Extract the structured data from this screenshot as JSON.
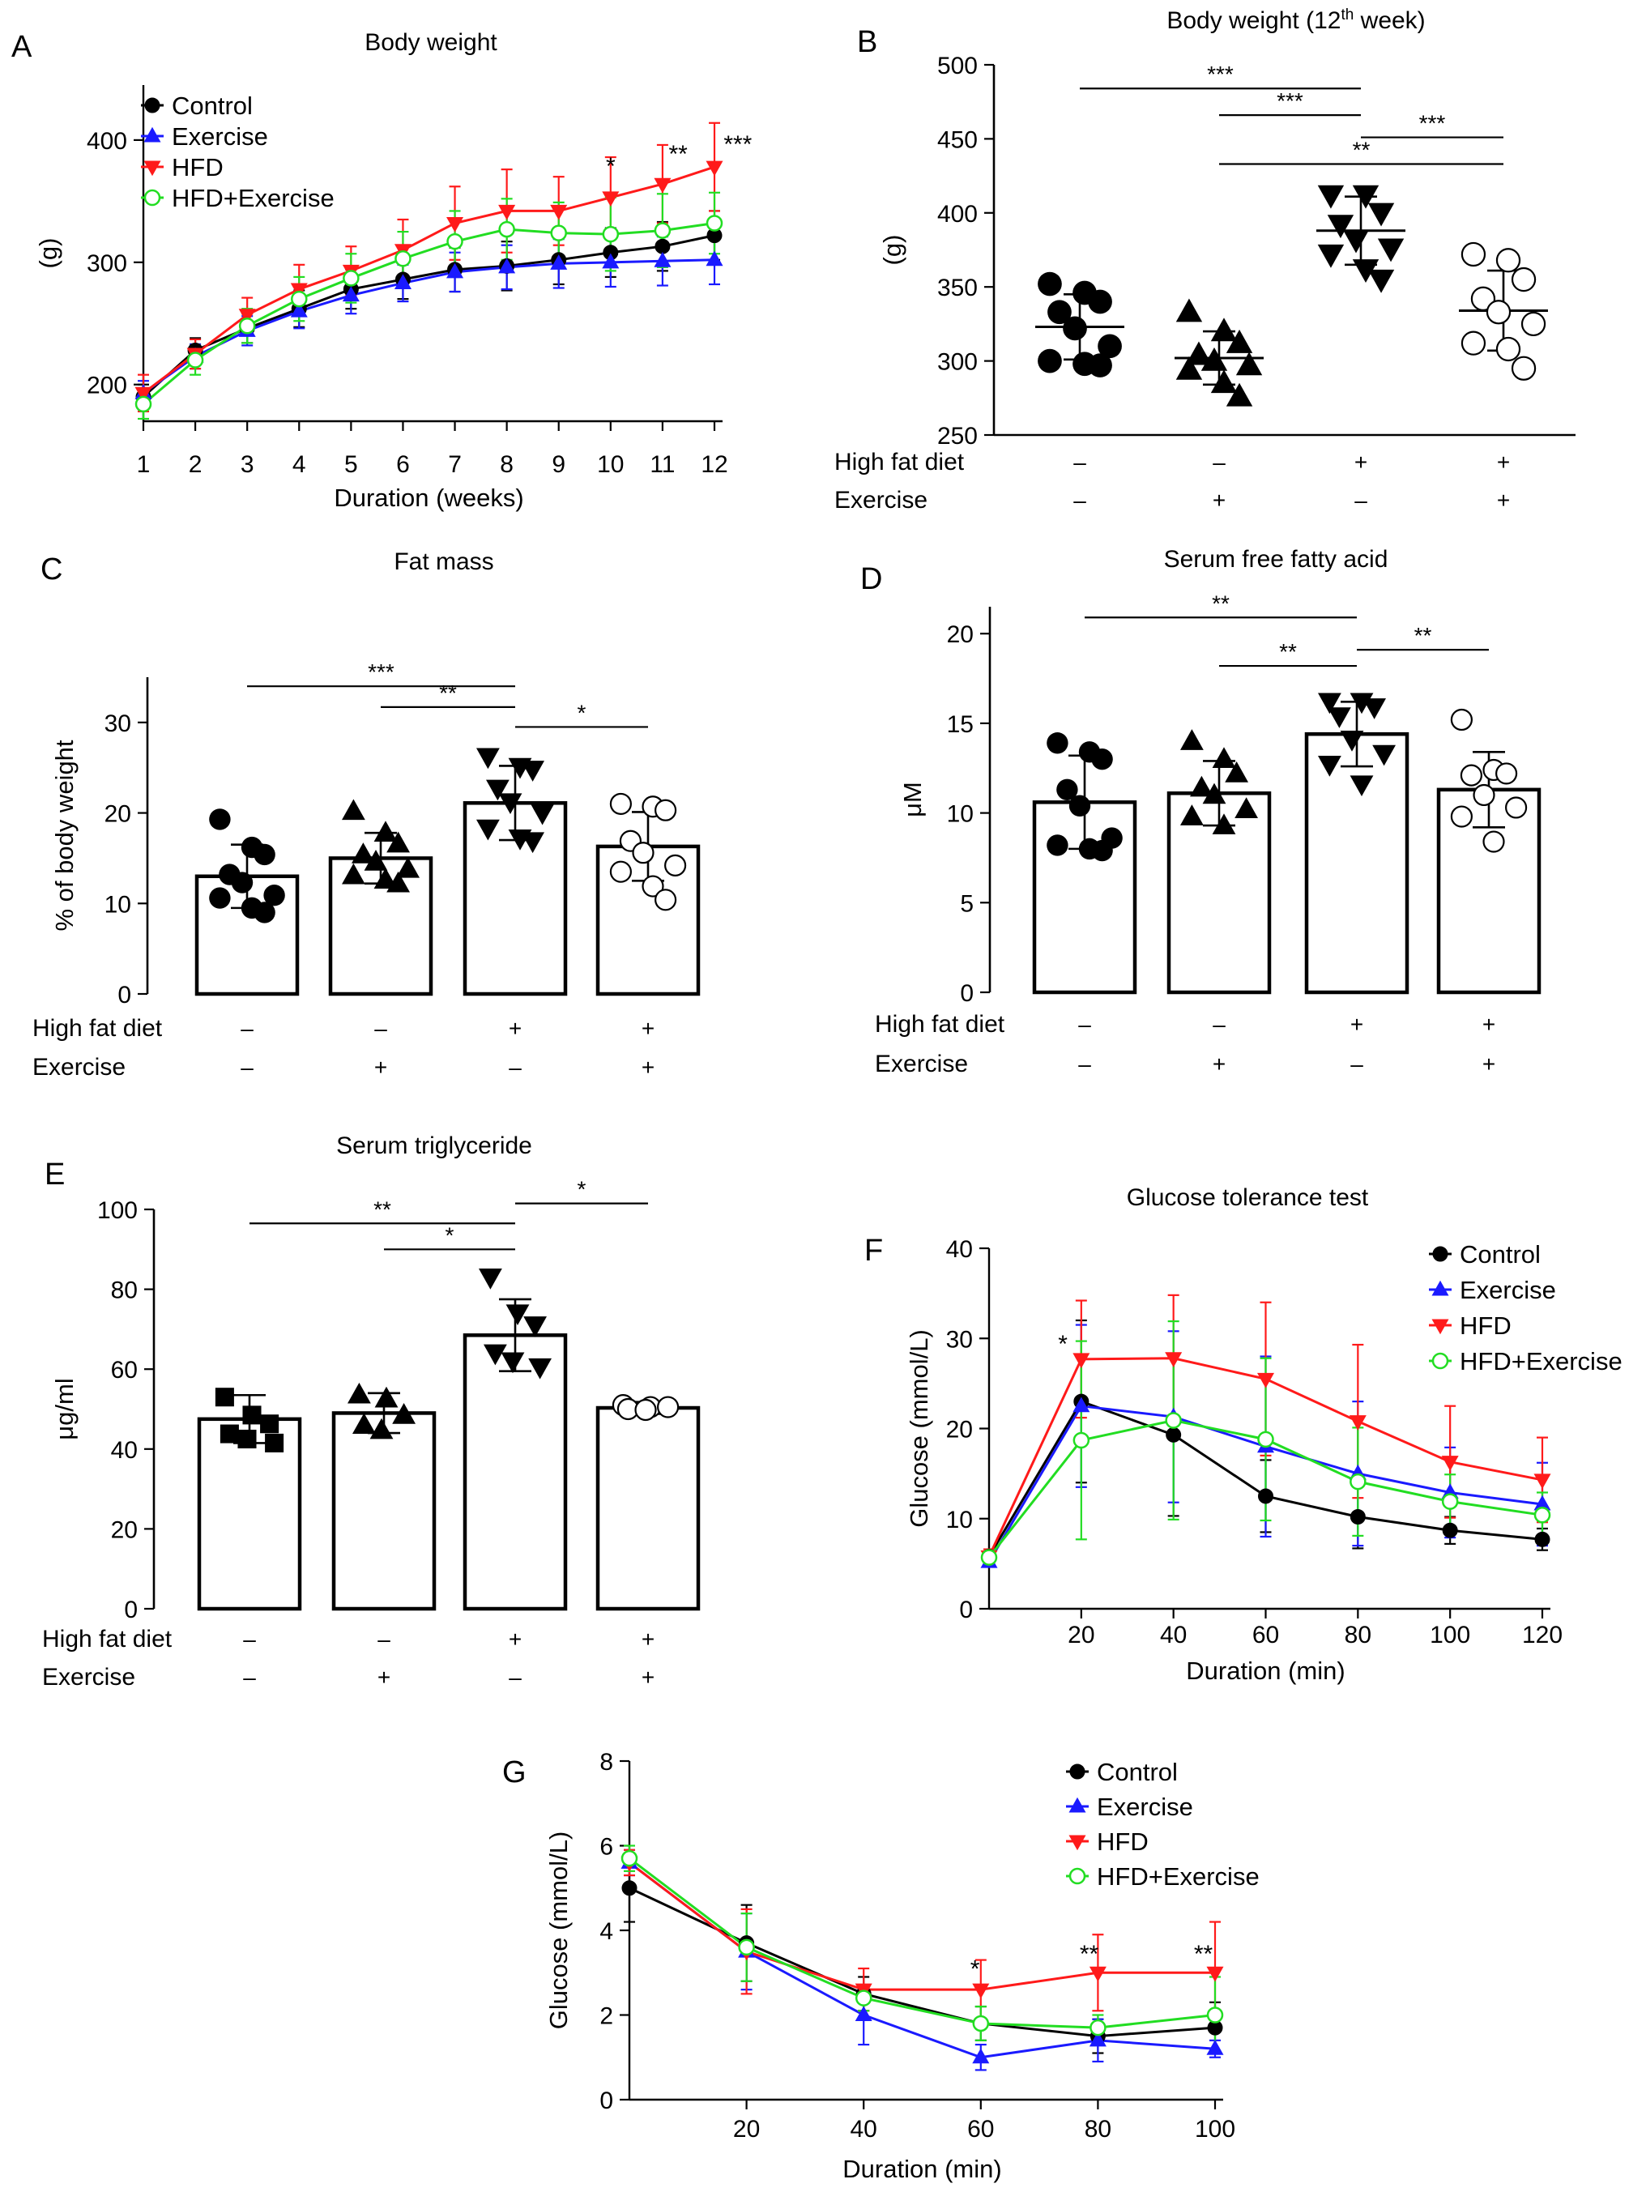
{
  "figure": {
    "colors": {
      "control": "#000000",
      "exercise": "#1a1aff",
      "hfd": "#ff1a1a",
      "hfdex": "#22dd22"
    }
  },
  "chart_data": [
    {
      "id": "A",
      "type": "line",
      "panel_label": "A",
      "title": "Body weight",
      "xlabel": "Duration (weeks)",
      "ylabel": "(g)",
      "x": [
        1,
        2,
        3,
        4,
        5,
        6,
        7,
        8,
        9,
        10,
        11,
        12
      ],
      "xticks": [
        1,
        2,
        3,
        4,
        5,
        6,
        7,
        8,
        9,
        10,
        11,
        12
      ],
      "xlim": [
        1,
        12
      ],
      "yticks": [
        200,
        300,
        400
      ],
      "ylim": [
        170,
        445
      ],
      "series": [
        {
          "name": "Control",
          "key": "control",
          "marker": "circle",
          "values": [
            190,
            228,
            246,
            262,
            278,
            286,
            294,
            297,
            302,
            308,
            313,
            322
          ],
          "err": [
            10,
            10,
            12,
            15,
            16,
            16,
            18,
            20,
            20,
            20,
            20,
            20
          ]
        },
        {
          "name": "Exercise",
          "key": "exercise",
          "marker": "tri-up",
          "values": [
            193,
            223,
            244,
            260,
            273,
            283,
            292,
            296,
            299,
            300,
            301,
            302
          ],
          "err": [
            10,
            10,
            12,
            14,
            15,
            15,
            16,
            18,
            20,
            20,
            20,
            20
          ]
        },
        {
          "name": "HFD",
          "key": "hfd",
          "marker": "tri-down",
          "values": [
            193,
            225,
            257,
            278,
            293,
            310,
            332,
            342,
            342,
            353,
            364,
            378
          ],
          "err": [
            15,
            12,
            14,
            20,
            20,
            25,
            30,
            34,
            28,
            33,
            32,
            36
          ]
        },
        {
          "name": "HFD+Exercise",
          "key": "hfdex",
          "marker": "ring",
          "values": [
            184,
            220,
            248,
            270,
            287,
            303,
            317,
            327,
            324,
            323,
            326,
            332
          ],
          "err": [
            12,
            12,
            14,
            18,
            20,
            22,
            25,
            25,
            25,
            30,
            30,
            25
          ]
        }
      ],
      "annotations": [
        {
          "text": "*",
          "x": 10,
          "y": 372
        },
        {
          "text": "**",
          "x": 11.3,
          "y": 382
        },
        {
          "text": "***",
          "x": 12.45,
          "y": 390
        }
      ]
    },
    {
      "id": "B",
      "type": "scatter",
      "panel_label": "B",
      "title": "Body weight (12",
      "title_sup": "th",
      "title_end": " week)",
      "ylabel": "(g)",
      "yticks": [
        250,
        300,
        350,
        400,
        450,
        500
      ],
      "ylim": [
        250,
        500
      ],
      "row_labels": [
        "High fat diet",
        "Exercise"
      ],
      "groups": [
        {
          "name": "Control",
          "marker": "circle-filled",
          "hfd": "–",
          "ex": "–",
          "mean": 323,
          "sd": 22,
          "points": [
            352,
            346,
            340,
            333,
            322,
            310,
            300,
            298,
            297
          ]
        },
        {
          "name": "Exercise",
          "marker": "tri-up-filled",
          "hfd": "–",
          "ex": "+",
          "mean": 302,
          "sd": 18,
          "points": [
            333,
            320,
            312,
            304,
            300,
            297,
            294,
            285,
            276
          ]
        },
        {
          "name": "HFD",
          "marker": "tri-down-filled",
          "hfd": "+",
          "ex": "–",
          "mean": 388,
          "sd": 23,
          "points": [
            412,
            412,
            400,
            392,
            382,
            376,
            372,
            362,
            355
          ]
        },
        {
          "name": "HFD+Exercise",
          "marker": "circle-open",
          "hfd": "+",
          "ex": "+",
          "mean": 334,
          "sd": 27,
          "points": [
            372,
            368,
            355,
            342,
            333,
            325,
            312,
            308,
            295
          ]
        }
      ],
      "brackets": [
        {
          "from": 0,
          "to": 2,
          "y": 484,
          "label": "***"
        },
        {
          "from": 1,
          "to": 2,
          "y": 466,
          "label": "***"
        },
        {
          "from": 2,
          "to": 3,
          "y": 451,
          "label": "***"
        },
        {
          "from": 1,
          "to": 3,
          "y": 433,
          "label": "**"
        }
      ]
    },
    {
      "id": "C",
      "type": "bar",
      "panel_label": "C",
      "title": "Fat mass",
      "ylabel": "% of body weight",
      "yticks": [
        0,
        10,
        20,
        30
      ],
      "ylim": [
        0,
        35
      ],
      "row_labels": [
        "High fat diet",
        "Exercise"
      ],
      "groups": [
        {
          "name": "Control",
          "marker": "circle-filled",
          "hfd": "–",
          "ex": "–",
          "mean": 13.0,
          "sd": 3.5,
          "points": [
            19.3,
            16.2,
            15.4,
            13.2,
            12.3,
            10.9,
            10.6,
            9.5,
            9.0
          ]
        },
        {
          "name": "Exercise",
          "marker": "tri-up-filled",
          "hfd": "–",
          "ex": "+",
          "mean": 15.0,
          "sd": 2.8,
          "points": [
            20.2,
            17.8,
            16.6,
            15.4,
            14.6,
            13.8,
            13.1,
            12.6,
            12.2
          ]
        },
        {
          "name": "HFD",
          "marker": "tri-down-filled",
          "hfd": "+",
          "ex": "–",
          "mean": 21.1,
          "sd": 4.1,
          "points": [
            26.2,
            25.1,
            24.8,
            22.7,
            21.2,
            20.0,
            18.3,
            17.2,
            16.9
          ]
        },
        {
          "name": "HFD+Exercise",
          "marker": "circle-open",
          "hfd": "+",
          "ex": "+",
          "mean": 16.3,
          "sd": 3.8,
          "points": [
            21.0,
            20.7,
            20.3,
            16.9,
            15.6,
            14.2,
            13.5,
            11.9,
            10.4
          ]
        }
      ],
      "brackets": [
        {
          "from": 0,
          "to": 2,
          "y": 34.0,
          "label": "***"
        },
        {
          "from": 1,
          "to": 2,
          "y": 31.7,
          "label": "**"
        },
        {
          "from": 2,
          "to": 3,
          "y": 29.5,
          "label": "*"
        }
      ]
    },
    {
      "id": "D",
      "type": "bar",
      "panel_label": "D",
      "title": "Serum free fatty acid",
      "ylabel": "μM",
      "yticks": [
        0,
        5,
        10,
        15,
        20
      ],
      "ylim": [
        0,
        21.5
      ],
      "row_labels": [
        "High fat diet",
        "Exercise"
      ],
      "groups": [
        {
          "name": "Control",
          "marker": "circle-filled",
          "hfd": "–",
          "ex": "–",
          "mean": 10.6,
          "sd": 2.6,
          "points": [
            13.9,
            13.4,
            13.0,
            11.3,
            10.4,
            8.6,
            8.2,
            8.0,
            7.9
          ]
        },
        {
          "name": "Exercise",
          "marker": "tri-up-filled",
          "hfd": "–",
          "ex": "+",
          "mean": 11.1,
          "sd": 1.8,
          "points": [
            14.0,
            13.0,
            12.2,
            11.4,
            11.0,
            10.2,
            9.8,
            9.3
          ]
        },
        {
          "name": "HFD",
          "marker": "tri-down-filled",
          "hfd": "+",
          "ex": "–",
          "mean": 14.4,
          "sd": 1.8,
          "points": [
            16.2,
            16.2,
            15.9,
            15.4,
            14.1,
            13.3,
            12.7,
            11.6
          ]
        },
        {
          "name": "HFD+Exercise",
          "marker": "circle-open",
          "hfd": "+",
          "ex": "+",
          "mean": 11.3,
          "sd": 2.1,
          "points": [
            15.2,
            12.4,
            12.2,
            12.1,
            11.0,
            10.3,
            9.8,
            8.4
          ]
        }
      ],
      "brackets": [
        {
          "from": 0,
          "to": 2,
          "y": 20.9,
          "label": "**"
        },
        {
          "from": 1,
          "to": 2,
          "y": 18.2,
          "label": "**"
        },
        {
          "from": 2,
          "to": 3,
          "y": 19.1,
          "label": "**"
        }
      ]
    },
    {
      "id": "E",
      "type": "bar",
      "panel_label": "E",
      "title": "Serum triglyceride",
      "ylabel": "μg/ml",
      "yticks": [
        0,
        20,
        40,
        60,
        80,
        100
      ],
      "ylim": [
        0,
        100
      ],
      "row_labels": [
        "High fat diet",
        "Exercise"
      ],
      "groups": [
        {
          "name": "Control",
          "marker": "square-filled",
          "hfd": "–",
          "ex": "–",
          "mean": 47.5,
          "sd": 6.0,
          "points": [
            53.0,
            48.5,
            46.3,
            43.8,
            42.5,
            41.5
          ]
        },
        {
          "name": "Exercise",
          "marker": "tri-up-filled",
          "hfd": "–",
          "ex": "+",
          "mean": 49.0,
          "sd": 5.0,
          "points": [
            53.6,
            52.6,
            48.5,
            46.0,
            44.7
          ]
        },
        {
          "name": "HFD",
          "marker": "tri-down-filled",
          "hfd": "+",
          "ex": "–",
          "mean": 68.5,
          "sd": 9.0,
          "points": [
            83.0,
            74.0,
            71.0,
            64.0,
            62.0,
            60.5
          ]
        },
        {
          "name": "HFD+Exercise",
          "marker": "circle-open",
          "hfd": "+",
          "ex": "+",
          "mean": 50.3,
          "sd": 1.5,
          "points": [
            51.0,
            50.5,
            50.5,
            50.0,
            49.8
          ]
        }
      ],
      "brackets": [
        {
          "from": 0,
          "to": 2,
          "y": 96.5,
          "label": "**"
        },
        {
          "from": 1,
          "to": 2,
          "y": 90.0,
          "label": "*"
        },
        {
          "from": 2,
          "to": 3,
          "y": 101.5,
          "label": "*"
        }
      ]
    },
    {
      "id": "F",
      "type": "line",
      "panel_label": "F",
      "title": "Glucose tolerance test",
      "xlabel": "Duration (min)",
      "ylabel": "Glucose (mmol/L)",
      "x": [
        0,
        20,
        40,
        60,
        80,
        100,
        120
      ],
      "xticks": [
        20,
        40,
        60,
        80,
        100,
        120
      ],
      "xlim": [
        0,
        120
      ],
      "yticks": [
        0,
        10,
        20,
        30,
        40
      ],
      "ylim": [
        0,
        40
      ],
      "series": [
        {
          "name": "Control",
          "key": "control",
          "marker": "circle",
          "values": [
            5.8,
            23.0,
            19.3,
            12.5,
            10.2,
            8.7,
            7.7
          ],
          "err": [
            0.5,
            9.0,
            9.0,
            4.0,
            3.5,
            1.5,
            1.2
          ]
        },
        {
          "name": "Exercise",
          "key": "exercise",
          "marker": "tri-up",
          "values": [
            5.2,
            22.5,
            21.3,
            18.0,
            15.0,
            12.9,
            11.6
          ],
          "err": [
            0.5,
            9.0,
            9.5,
            10.0,
            8.0,
            5.0,
            4.6
          ]
        },
        {
          "name": "HFD",
          "key": "hfd",
          "marker": "tri-down",
          "values": [
            5.8,
            27.7,
            27.8,
            25.5,
            20.8,
            16.3,
            14.3
          ],
          "err": [
            0.8,
            6.5,
            7.0,
            8.5,
            8.5,
            6.2,
            4.7
          ]
        },
        {
          "name": "HFD+Exercise",
          "key": "hfdex",
          "marker": "ring",
          "values": [
            5.7,
            18.7,
            20.9,
            18.8,
            14.1,
            11.9,
            10.4
          ],
          "err": [
            0.6,
            11.0,
            11.0,
            9.0,
            6.0,
            3.0,
            2.5
          ]
        }
      ],
      "annotations": [
        {
          "text": "*",
          "x": 16,
          "y": 28.5
        }
      ]
    },
    {
      "id": "G",
      "type": "line",
      "panel_label": "G",
      "title": "",
      "xlabel": "Duration (min)",
      "ylabel": "Glucose (mmol/L)",
      "x": [
        0,
        20,
        40,
        60,
        80,
        100
      ],
      "xticks": [
        20,
        40,
        60,
        80,
        100
      ],
      "xlim": [
        0,
        100
      ],
      "yticks": [
        0,
        2,
        4,
        6,
        8
      ],
      "ylim": [
        0,
        8
      ],
      "series": [
        {
          "name": "Control",
          "key": "control",
          "marker": "circle",
          "values": [
            5.0,
            3.7,
            2.5,
            1.8,
            1.5,
            1.7
          ],
          "err": [
            0.8,
            0.9,
            0.4,
            0.4,
            0.4,
            0.6
          ]
        },
        {
          "name": "Exercise",
          "key": "exercise",
          "marker": "tri-up",
          "values": [
            5.6,
            3.5,
            2.0,
            1.0,
            1.4,
            1.2
          ],
          "err": [
            0.3,
            0.9,
            0.7,
            0.3,
            0.5,
            0.2
          ]
        },
        {
          "name": "HFD",
          "key": "hfd",
          "marker": "tri-down",
          "values": [
            5.6,
            3.5,
            2.6,
            2.6,
            3.0,
            3.0
          ],
          "err": [
            0.3,
            1.0,
            0.5,
            0.7,
            0.9,
            1.2
          ]
        },
        {
          "name": "HFD+Exercise",
          "key": "hfdex",
          "marker": "ring",
          "values": [
            5.7,
            3.6,
            2.4,
            1.8,
            1.7,
            2.0
          ],
          "err": [
            0.3,
            0.8,
            0.3,
            0.4,
            0.3,
            0.9
          ]
        }
      ],
      "annotations": [
        {
          "text": "*",
          "x": 59,
          "y": 2.9
        },
        {
          "text": "**",
          "x": 78.5,
          "y": 3.25
        },
        {
          "text": "**",
          "x": 98,
          "y": 3.25
        }
      ]
    }
  ]
}
